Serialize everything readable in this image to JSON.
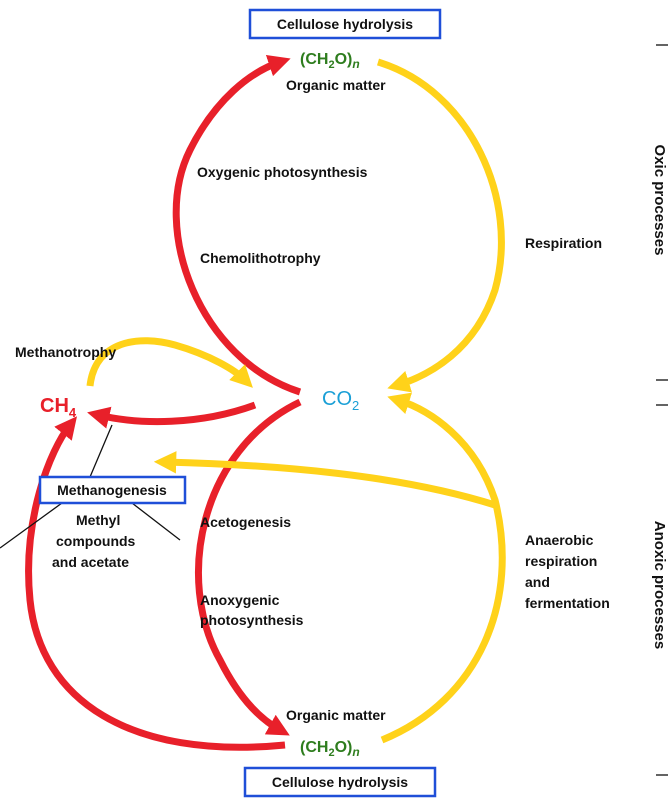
{
  "top_box": "Cellulose hydrolysis",
  "top_formula": [
    "(CH",
    "2",
    "O)",
    "n"
  ],
  "top_label": "Organic matter",
  "left_upper": [
    "Oxygenic photosynthesis",
    "Chemolithotrophy"
  ],
  "right_upper": "Respiration",
  "oxic_label": "Oxic processes",
  "methanotrophy": "Methanotrophy",
  "ch4": [
    "CH",
    "4"
  ],
  "co2": [
    "CO",
    "2"
  ],
  "methanogenesis": "Methanogenesis",
  "methyl": [
    "Methyl",
    "compounds",
    "and acetate"
  ],
  "left_lower": [
    "Acetogenesis",
    "Anoxygenic",
    "photosynthesis"
  ],
  "right_lower": [
    "Anaerobic",
    "respiration",
    "and",
    "fermentation"
  ],
  "anoxic_label": "Anoxic processes",
  "bottom_label": "Organic matter",
  "bottom_formula": [
    "(CH",
    "2",
    "O)",
    "n"
  ],
  "bottom_box": "Cellulose hydrolysis"
}
